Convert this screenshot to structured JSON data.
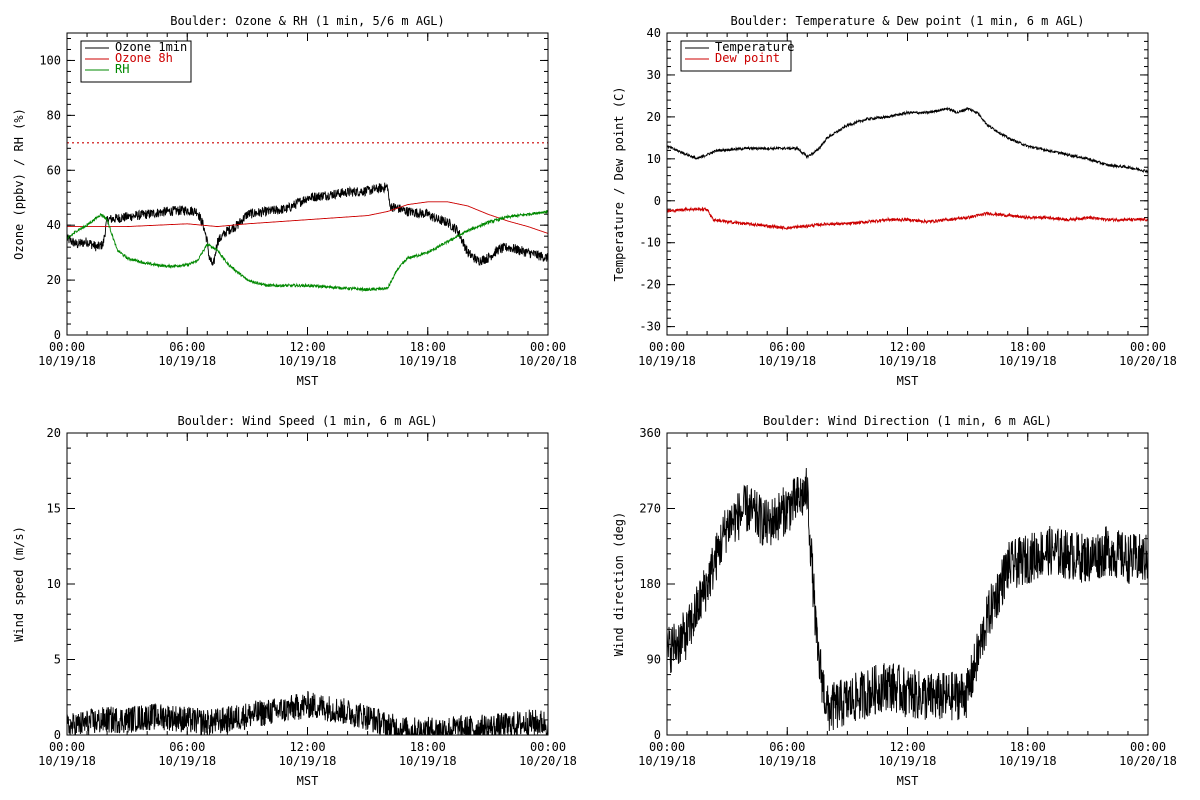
{
  "chart_data": [
    {
      "type": "line",
      "title": "Boulder: Ozone & RH (1 min, 5/6 m AGL)",
      "xlabel": "MST",
      "ylabel": "Ozone (ppbv) / RH (%)",
      "ylim": [
        0,
        110
      ],
      "yticks": [
        0,
        20,
        40,
        60,
        80,
        100
      ],
      "xticks": [
        {
          "time": "00:00",
          "date": "10/19/18"
        },
        {
          "time": "06:00",
          "date": "10/19/18"
        },
        {
          "time": "12:00",
          "date": "10/19/18"
        },
        {
          "time": "18:00",
          "date": "10/19/18"
        },
        {
          "time": "00:00",
          "date": "10/20/18"
        }
      ],
      "xlim_hours": [
        0,
        24
      ],
      "legend": "top-left",
      "series": [
        {
          "name": "Ozone 1min",
          "color": "#000000",
          "noise": 1.8,
          "points": [
            [
              0,
              35
            ],
            [
              0.5,
              33
            ],
            [
              1,
              34
            ],
            [
              1.5,
              32
            ],
            [
              1.8,
              33
            ],
            [
              2,
              42
            ],
            [
              3,
              43
            ],
            [
              4,
              44
            ],
            [
              5,
              45
            ],
            [
              6,
              45.5
            ],
            [
              6.5,
              45
            ],
            [
              6.8,
              40
            ],
            [
              7,
              34
            ],
            [
              7.1,
              28
            ],
            [
              7.3,
              25
            ],
            [
              7.5,
              34
            ],
            [
              8,
              38
            ],
            [
              8.5,
              40
            ],
            [
              9,
              44
            ],
            [
              10,
              45
            ],
            [
              11,
              46
            ],
            [
              11.5,
              48
            ],
            [
              12,
              50
            ],
            [
              13,
              51
            ],
            [
              14,
              52
            ],
            [
              15,
              52.5
            ],
            [
              16,
              54
            ],
            [
              16.1,
              47
            ],
            [
              17,
              45
            ],
            [
              18,
              44
            ],
            [
              18.5,
              42
            ],
            [
              19,
              41
            ],
            [
              19.5,
              38
            ],
            [
              20,
              30
            ],
            [
              20.5,
              27
            ],
            [
              21,
              28
            ],
            [
              21.5,
              31
            ],
            [
              22,
              32
            ],
            [
              23,
              30
            ],
            [
              24,
              28
            ]
          ]
        },
        {
          "name": "Ozone 8h",
          "color": "#cc0000",
          "noise": 0,
          "points": [
            [
              0,
              39.5
            ],
            [
              3,
              39.5
            ],
            [
              6,
              40.5
            ],
            [
              7.5,
              39.5
            ],
            [
              9,
              40.5
            ],
            [
              12,
              42
            ],
            [
              15,
              43.5
            ],
            [
              16,
              45
            ],
            [
              17,
              47.5
            ],
            [
              18,
              48.5
            ],
            [
              19,
              48.5
            ],
            [
              20,
              47
            ],
            [
              21,
              44
            ],
            [
              22,
              41.5
            ],
            [
              23,
              39.5
            ],
            [
              24,
              37
            ]
          ]
        },
        {
          "name": "RH",
          "color": "#008800",
          "noise": 0.5,
          "points": [
            [
              0,
              35
            ],
            [
              0.5,
              38
            ],
            [
              1,
              40
            ],
            [
              1.7,
              44
            ],
            [
              2,
              42
            ],
            [
              2.5,
              31
            ],
            [
              3,
              28
            ],
            [
              4,
              26
            ],
            [
              5,
              25
            ],
            [
              6,
              25.5
            ],
            [
              6.5,
              27
            ],
            [
              7,
              33
            ],
            [
              7.5,
              31
            ],
            [
              8,
              26
            ],
            [
              9,
              20
            ],
            [
              10,
              18
            ],
            [
              12,
              18
            ],
            [
              14,
              17
            ],
            [
              15,
              16.5
            ],
            [
              16,
              17
            ],
            [
              16.5,
              24
            ],
            [
              17,
              28
            ],
            [
              18,
              30
            ],
            [
              19,
              34
            ],
            [
              20,
              38
            ],
            [
              21,
              41
            ],
            [
              22,
              43
            ],
            [
              23,
              44
            ],
            [
              24,
              45
            ]
          ]
        }
      ],
      "reference_line": {
        "value": 70,
        "color": "#cc0000",
        "style": "dotted"
      }
    },
    {
      "type": "line",
      "title": "Boulder: Temperature & Dew point (1 min, 6 m AGL)",
      "xlabel": "MST",
      "ylabel": "Temperature / Dew point (C)",
      "ylim": [
        -32,
        40
      ],
      "yticks": [
        -30,
        -20,
        -10,
        0,
        10,
        20,
        30,
        40
      ],
      "xticks": [
        {
          "time": "00:00",
          "date": "10/19/18"
        },
        {
          "time": "06:00",
          "date": "10/19/18"
        },
        {
          "time": "12:00",
          "date": "10/19/18"
        },
        {
          "time": "18:00",
          "date": "10/19/18"
        },
        {
          "time": "00:00",
          "date": "10/20/18"
        }
      ],
      "xlim_hours": [
        0,
        24
      ],
      "legend": "top-left",
      "series": [
        {
          "name": "Temperature",
          "color": "#000000",
          "noise": 0.3,
          "points": [
            [
              0,
              13
            ],
            [
              1,
              11
            ],
            [
              1.5,
              10
            ],
            [
              2,
              11
            ],
            [
              2.5,
              12
            ],
            [
              4,
              12.5
            ],
            [
              5,
              12.5
            ],
            [
              6,
              12.5
            ],
            [
              6.5,
              12.5
            ],
            [
              7,
              10.5
            ],
            [
              7.5,
              12
            ],
            [
              8,
              15
            ],
            [
              9,
              18
            ],
            [
              10,
              19.5
            ],
            [
              11,
              20
            ],
            [
              12,
              21
            ],
            [
              13,
              21
            ],
            [
              14,
              22
            ],
            [
              14.5,
              21
            ],
            [
              15,
              22
            ],
            [
              15.5,
              21
            ],
            [
              16,
              18
            ],
            [
              17,
              15
            ],
            [
              18,
              13
            ],
            [
              19,
              12
            ],
            [
              20,
              11
            ],
            [
              21,
              10
            ],
            [
              22,
              8.5
            ],
            [
              23,
              8
            ],
            [
              24,
              7
            ]
          ]
        },
        {
          "name": "Dew point",
          "color": "#cc0000",
          "noise": 0.35,
          "points": [
            [
              0,
              -2.5
            ],
            [
              1,
              -2
            ],
            [
              2,
              -2
            ],
            [
              2.3,
              -4.5
            ],
            [
              3,
              -5
            ],
            [
              4,
              -5.5
            ],
            [
              5,
              -6
            ],
            [
              6,
              -6.5
            ],
            [
              7,
              -6
            ],
            [
              8,
              -5.5
            ],
            [
              9,
              -5.5
            ],
            [
              10,
              -5
            ],
            [
              11,
              -4.5
            ],
            [
              12,
              -4.5
            ],
            [
              13,
              -5
            ],
            [
              14,
              -4.5
            ],
            [
              15,
              -4
            ],
            [
              16,
              -3
            ],
            [
              17,
              -3.5
            ],
            [
              18,
              -4
            ],
            [
              19,
              -4
            ],
            [
              20,
              -4.5
            ],
            [
              21,
              -4
            ],
            [
              22,
              -4.5
            ],
            [
              23,
              -4.5
            ],
            [
              24,
              -4.5
            ]
          ]
        }
      ]
    },
    {
      "type": "line",
      "title": "Boulder: Wind Speed (1 min, 6 m AGL)",
      "xlabel": "MST",
      "ylabel": "Wind speed (m/s)",
      "ylim": [
        0,
        20
      ],
      "yticks": [
        0,
        5,
        10,
        15,
        20
      ],
      "xticks": [
        {
          "time": "00:00",
          "date": "10/19/18"
        },
        {
          "time": "06:00",
          "date": "10/19/18"
        },
        {
          "time": "12:00",
          "date": "10/19/18"
        },
        {
          "time": "18:00",
          "date": "10/19/18"
        },
        {
          "time": "00:00",
          "date": "10/20/18"
        }
      ],
      "xlim_hours": [
        0,
        24
      ],
      "series": [
        {
          "name": "",
          "color": "#000000",
          "noise": 0.9,
          "points": [
            [
              0,
              0.5
            ],
            [
              1,
              0.8
            ],
            [
              2,
              1
            ],
            [
              3,
              1
            ],
            [
              4,
              1.2
            ],
            [
              5,
              1.2
            ],
            [
              6,
              1
            ],
            [
              7,
              0.8
            ],
            [
              8,
              1
            ],
            [
              9,
              1.3
            ],
            [
              10,
              1.5
            ],
            [
              11,
              1.7
            ],
            [
              12,
              2
            ],
            [
              13,
              1.8
            ],
            [
              14,
              1.5
            ],
            [
              15,
              1.2
            ],
            [
              16,
              0.6
            ],
            [
              17,
              0.3
            ],
            [
              18,
              0.3
            ],
            [
              19,
              0.4
            ],
            [
              20,
              0.4
            ],
            [
              21,
              0.5
            ],
            [
              22,
              0.6
            ],
            [
              23,
              0.8
            ],
            [
              24,
              0.8
            ]
          ]
        }
      ]
    },
    {
      "type": "line",
      "title": "Boulder: Wind Direction (1 min, 6 m AGL)",
      "xlabel": "MST",
      "ylabel": "Wind direction (deg)",
      "ylim": [
        0,
        360
      ],
      "yticks": [
        0,
        90,
        180,
        270,
        360
      ],
      "xticks": [
        {
          "time": "00:00",
          "date": "10/19/18"
        },
        {
          "time": "06:00",
          "date": "10/19/18"
        },
        {
          "time": "12:00",
          "date": "10/19/18"
        },
        {
          "time": "18:00",
          "date": "10/19/18"
        },
        {
          "time": "00:00",
          "date": "10/20/18"
        }
      ],
      "xlim_hours": [
        0,
        24
      ],
      "series": [
        {
          "name": "",
          "color": "#000000",
          "noise": 30,
          "points": [
            [
              0,
              100
            ],
            [
              1,
              120
            ],
            [
              2,
              180
            ],
            [
              3,
              250
            ],
            [
              4,
              270
            ],
            [
              5,
              250
            ],
            [
              6,
              270
            ],
            [
              7,
              290
            ],
            [
              7.5,
              100
            ],
            [
              8,
              30
            ],
            [
              9,
              40
            ],
            [
              10,
              50
            ],
            [
              11,
              60
            ],
            [
              12,
              50
            ],
            [
              13,
              45
            ],
            [
              14,
              45
            ],
            [
              15,
              50
            ],
            [
              16,
              140
            ],
            [
              17,
              200
            ],
            [
              18,
              210
            ],
            [
              19,
              220
            ],
            [
              20,
              215
            ],
            [
              21,
              210
            ],
            [
              22,
              220
            ],
            [
              23,
              210
            ],
            [
              24,
              210
            ]
          ]
        }
      ]
    }
  ]
}
